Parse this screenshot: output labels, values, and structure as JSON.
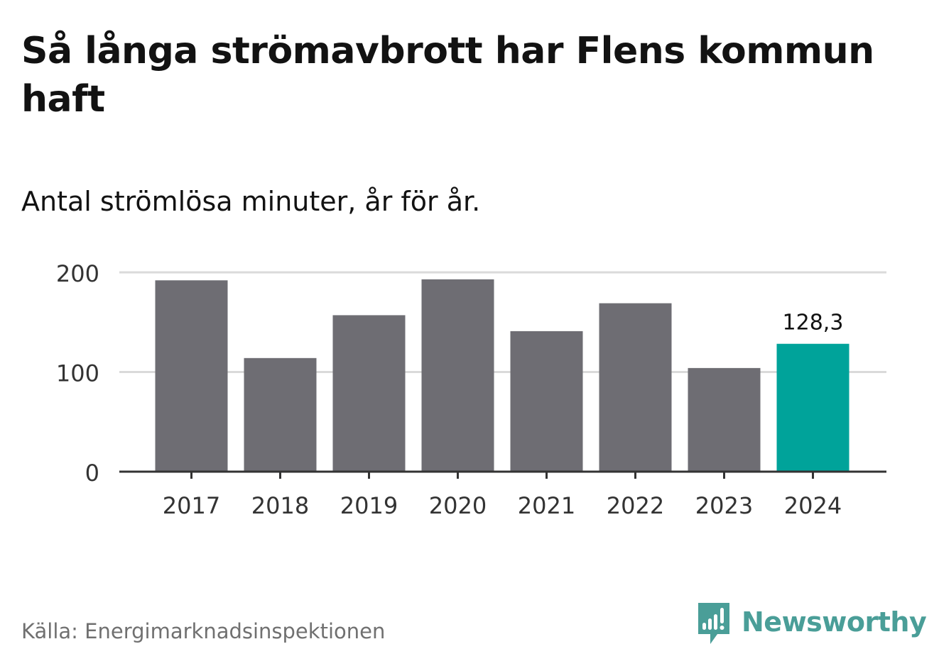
{
  "header": {
    "title": "Så långa strömavbrott har Flens kommun haft",
    "subtitle": "Antal strömlösa minuter, år för år."
  },
  "footer": {
    "source": "Källa: Energimarknadsinspektionen",
    "brand": "Newsworthy",
    "brand_icon": "newsworthy-logo-icon"
  },
  "colors": {
    "bar": "#6e6d73",
    "highlight": "#00a39a",
    "grid": "#dadada",
    "axis": "#333333",
    "brand": "#4a9e98"
  },
  "chart_data": {
    "type": "bar",
    "categories": [
      "2017",
      "2018",
      "2019",
      "2020",
      "2021",
      "2022",
      "2023",
      "2024"
    ],
    "values": [
      192,
      114,
      157,
      193,
      141,
      169,
      104,
      128.3
    ],
    "highlight_index": 7,
    "highlight_label": "128,3",
    "yticks": [
      0,
      100,
      200
    ],
    "ytick_labels": [
      "0",
      "100",
      "200"
    ],
    "ylim": [
      0,
      200
    ],
    "grid": true,
    "xlabel": "",
    "ylabel": ""
  }
}
